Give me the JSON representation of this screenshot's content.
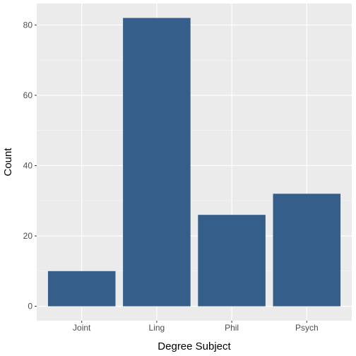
{
  "chart_data": {
    "type": "bar",
    "title": "",
    "xlabel": "Degree Subject",
    "ylabel": "Count",
    "categories": [
      "Joint",
      "Ling",
      "Phil",
      "Psych"
    ],
    "values": [
      10,
      82,
      26,
      32
    ],
    "ylim": [
      -4.1,
      86.1
    ],
    "yticks": [
      0,
      20,
      40,
      60,
      80
    ],
    "ytick_labels": [
      "0",
      "20",
      "40",
      "60",
      "80"
    ],
    "grid": true,
    "legend": "none",
    "colors": {
      "bar": "#355F8A",
      "panel": "#EBEBEB",
      "grid_major": "#FFFFFF",
      "grid_minor": "#F5F5F5"
    }
  }
}
